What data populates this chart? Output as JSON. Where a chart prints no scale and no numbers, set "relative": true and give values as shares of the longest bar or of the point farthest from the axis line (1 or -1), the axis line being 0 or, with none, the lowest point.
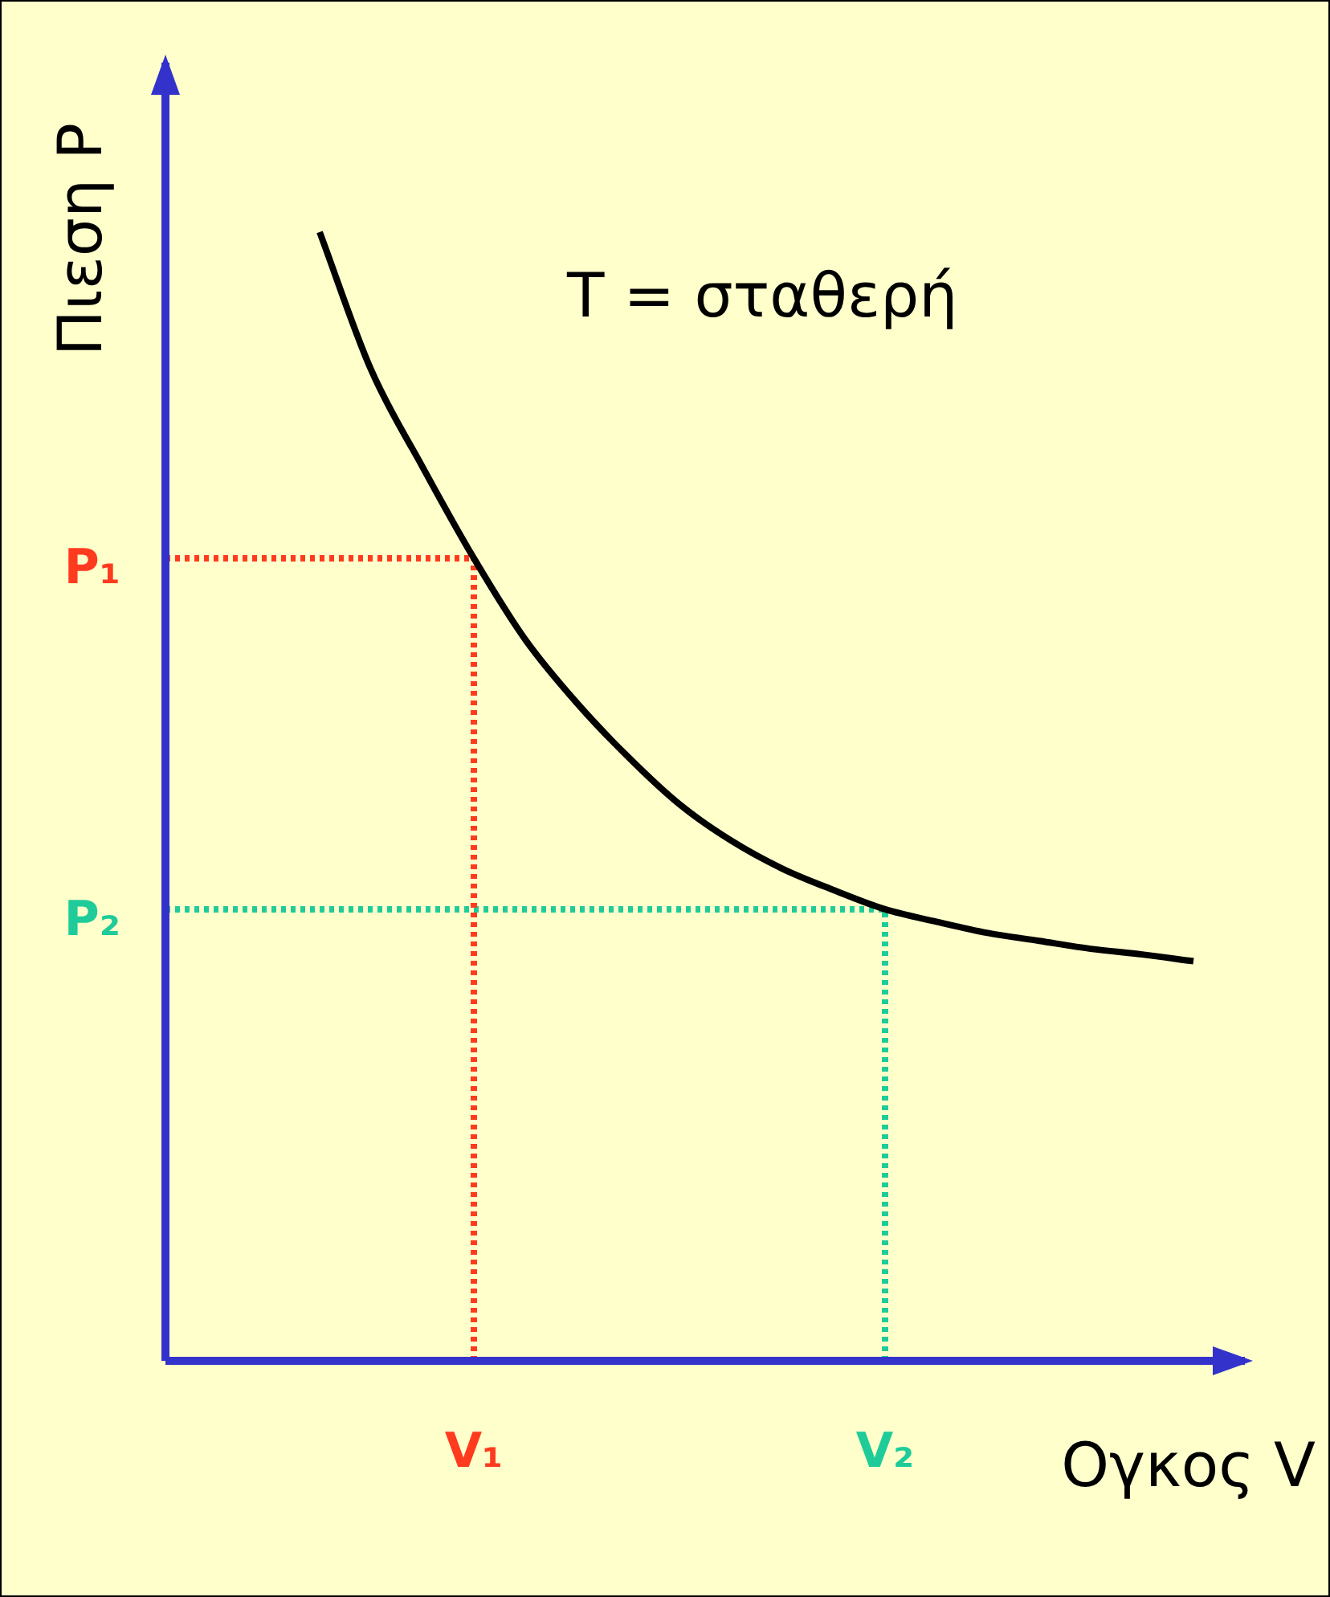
{
  "chart_data": {
    "type": "line",
    "relative": true,
    "xlabel": "Ογκος V",
    "ylabel": "Πιεση P",
    "annotations": [
      "T = σταθερή"
    ],
    "categories": [
      null,
      null,
      null,
      null,
      null,
      null,
      "V₁",
      null,
      null,
      null,
      null,
      null,
      null,
      null,
      "V₂",
      null,
      null,
      null,
      null,
      null,
      null,
      null
    ],
    "series": [
      {
        "color": "#000000",
        "values": [
          null,
          null,
          null,
          1.0,
          0.878,
          0.792,
          0.711,
          0.639,
          0.583,
          0.535,
          0.493,
          0.461,
          0.436,
          0.417,
          0.4,
          0.389,
          0.379,
          0.372,
          0.365,
          0.36,
          0.354,
          null
        ]
      }
    ],
    "ref_lines": [
      {
        "axis": "y",
        "value": 0.711,
        "label": "P₁",
        "color": "#ff3b1f",
        "line_style": "dotted"
      },
      {
        "axis": "y",
        "value": 0.4,
        "label": "P₂",
        "color": "#1fcc99",
        "line_style": "dotted"
      },
      {
        "axis": "x",
        "value": "V₁",
        "color": "#ff3b1f",
        "line_style": "dotted"
      },
      {
        "axis": "x",
        "value": "V₂",
        "color": "#1fcc99",
        "line_style": "dotted"
      }
    ],
    "legend": false,
    "marker": "none",
    "line_style": "solid"
  }
}
